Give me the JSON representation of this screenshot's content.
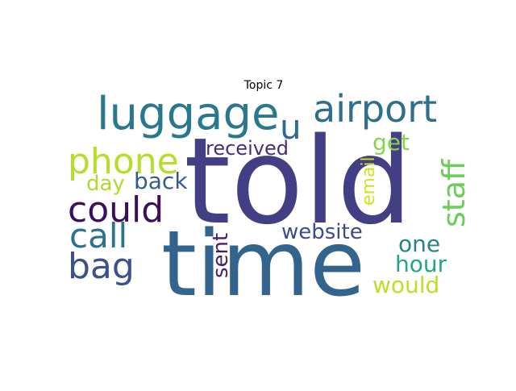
{
  "chart_data": {
    "type": "wordcloud",
    "title": "Topic 7",
    "words": [
      {
        "text": "told",
        "weight": 1.0,
        "color": "#433f84"
      },
      {
        "text": "time",
        "weight": 0.9,
        "color": "#33648d"
      },
      {
        "text": "luggage",
        "weight": 0.5,
        "color": "#2a788e"
      },
      {
        "text": "airport",
        "weight": 0.42,
        "color": "#2e6e8e"
      },
      {
        "text": "could",
        "weight": 0.4,
        "color": "#3b0f5e"
      },
      {
        "text": "bag",
        "weight": 0.38,
        "color": "#3b528b"
      },
      {
        "text": "phone",
        "weight": 0.37,
        "color": "#b5de2b"
      },
      {
        "text": "call",
        "weight": 0.36,
        "color": "#2c728e"
      },
      {
        "text": "u",
        "weight": 0.35,
        "color": "#31688e"
      },
      {
        "text": "staff",
        "weight": 0.34,
        "color": "#6ccd5a"
      },
      {
        "text": "back",
        "weight": 0.24,
        "color": "#38598c"
      },
      {
        "text": "one",
        "weight": 0.24,
        "color": "#26828e"
      },
      {
        "text": "hour",
        "weight": 0.24,
        "color": "#22a785"
      },
      {
        "text": "would",
        "weight": 0.24,
        "color": "#bddf26"
      },
      {
        "text": "website",
        "weight": 0.22,
        "color": "#3e4a89"
      },
      {
        "text": "get",
        "weight": 0.22,
        "color": "#86d549"
      },
      {
        "text": "day",
        "weight": 0.22,
        "color": "#addc30"
      },
      {
        "text": "sent",
        "weight": 0.2,
        "color": "#481d6f"
      },
      {
        "text": "received",
        "weight": 0.2,
        "color": "#472d7b"
      },
      {
        "text": "email",
        "weight": 0.18,
        "color": "#d2e21b"
      }
    ]
  }
}
